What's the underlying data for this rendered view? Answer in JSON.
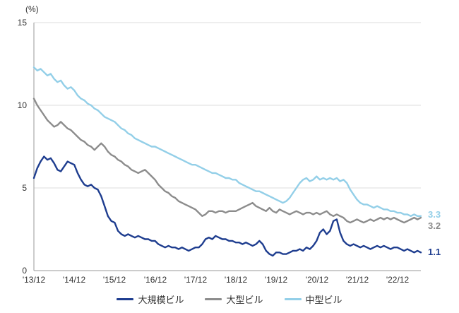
{
  "chart_data": {
    "type": "line",
    "unit_label": "(%)",
    "ylim": [
      0,
      15
    ],
    "yticks": [
      15,
      10,
      5,
      0
    ],
    "ytick_labels": [
      "15",
      "10",
      "5",
      "0"
    ],
    "x_tick_labels": [
      "'13/12",
      "'14/12",
      "'15/12",
      "'16/12",
      "'17/12",
      "'18/12",
      "'19/12",
      "'20/12",
      "'21/12",
      "'22/12"
    ],
    "x_frequency": "monthly",
    "x_start": "2013/12",
    "x_end": "2023/07",
    "grid": "horizontal",
    "legend_position": "bottom",
    "series": [
      {
        "name": "大規模ビル",
        "color": "#1e3d8f",
        "end_label": "1.1",
        "values": [
          5.6,
          6.2,
          6.6,
          6.9,
          6.7,
          6.8,
          6.5,
          6.1,
          6.0,
          6.3,
          6.6,
          6.5,
          6.4,
          5.9,
          5.5,
          5.2,
          5.1,
          5.2,
          5.0,
          4.9,
          4.5,
          3.9,
          3.3,
          3.0,
          2.9,
          2.4,
          2.2,
          2.1,
          2.2,
          2.1,
          2.0,
          2.1,
          2.0,
          1.9,
          1.9,
          1.8,
          1.8,
          1.6,
          1.5,
          1.4,
          1.5,
          1.4,
          1.4,
          1.3,
          1.4,
          1.3,
          1.2,
          1.3,
          1.4,
          1.4,
          1.6,
          1.9,
          2.0,
          1.9,
          2.1,
          2.0,
          1.9,
          1.9,
          1.8,
          1.8,
          1.7,
          1.7,
          1.6,
          1.7,
          1.6,
          1.5,
          1.6,
          1.8,
          1.6,
          1.2,
          1.0,
          0.9,
          1.1,
          1.1,
          1.0,
          1.0,
          1.1,
          1.2,
          1.2,
          1.3,
          1.2,
          1.4,
          1.3,
          1.5,
          1.8,
          2.3,
          2.5,
          2.2,
          2.4,
          3.0,
          3.1,
          2.3,
          1.8,
          1.6,
          1.5,
          1.6,
          1.5,
          1.4,
          1.5,
          1.4,
          1.3,
          1.4,
          1.5,
          1.4,
          1.5,
          1.4,
          1.3,
          1.4,
          1.4,
          1.3,
          1.2,
          1.3,
          1.2,
          1.1,
          1.2,
          1.1
        ]
      },
      {
        "name": "大型ビル",
        "color": "#8c8c8c",
        "end_label": "3.2",
        "values": [
          10.4,
          10.0,
          9.7,
          9.4,
          9.1,
          8.9,
          8.7,
          8.8,
          9.0,
          8.8,
          8.6,
          8.5,
          8.3,
          8.1,
          7.9,
          7.8,
          7.6,
          7.5,
          7.3,
          7.5,
          7.7,
          7.5,
          7.2,
          7.0,
          6.9,
          6.7,
          6.6,
          6.4,
          6.3,
          6.1,
          6.0,
          5.9,
          6.0,
          6.1,
          5.9,
          5.7,
          5.5,
          5.2,
          5.0,
          4.8,
          4.7,
          4.5,
          4.4,
          4.2,
          4.1,
          4.0,
          3.9,
          3.8,
          3.7,
          3.5,
          3.3,
          3.4,
          3.6,
          3.6,
          3.5,
          3.6,
          3.6,
          3.5,
          3.6,
          3.6,
          3.6,
          3.7,
          3.8,
          3.9,
          4.0,
          4.1,
          3.9,
          3.8,
          3.7,
          3.6,
          3.8,
          3.6,
          3.5,
          3.7,
          3.6,
          3.5,
          3.4,
          3.5,
          3.6,
          3.5,
          3.4,
          3.5,
          3.5,
          3.4,
          3.5,
          3.4,
          3.5,
          3.6,
          3.4,
          3.3,
          3.4,
          3.3,
          3.2,
          3.0,
          2.9,
          3.0,
          3.1,
          3.0,
          2.9,
          3.0,
          3.1,
          3.0,
          3.1,
          3.2,
          3.1,
          3.2,
          3.1,
          3.2,
          3.1,
          3.0,
          2.9,
          3.0,
          3.1,
          3.2,
          3.1,
          3.2
        ]
      },
      {
        "name": "中型ビル",
        "color": "#93cfe8",
        "end_label": "3.3",
        "values": [
          12.3,
          12.1,
          12.2,
          12.0,
          11.8,
          11.9,
          11.6,
          11.4,
          11.5,
          11.2,
          11.0,
          11.1,
          10.9,
          10.6,
          10.4,
          10.3,
          10.1,
          10.0,
          9.8,
          9.7,
          9.5,
          9.3,
          9.2,
          9.1,
          9.0,
          8.8,
          8.6,
          8.5,
          8.3,
          8.2,
          8.0,
          7.9,
          7.8,
          7.7,
          7.6,
          7.5,
          7.5,
          7.4,
          7.3,
          7.2,
          7.1,
          7.0,
          6.9,
          6.8,
          6.7,
          6.6,
          6.5,
          6.4,
          6.4,
          6.3,
          6.2,
          6.1,
          6.0,
          5.9,
          5.9,
          5.8,
          5.7,
          5.6,
          5.6,
          5.5,
          5.5,
          5.3,
          5.2,
          5.1,
          5.0,
          4.9,
          4.8,
          4.8,
          4.7,
          4.6,
          4.5,
          4.4,
          4.3,
          4.2,
          4.1,
          4.2,
          4.4,
          4.7,
          5.0,
          5.3,
          5.5,
          5.6,
          5.4,
          5.5,
          5.7,
          5.5,
          5.6,
          5.5,
          5.6,
          5.5,
          5.6,
          5.4,
          5.5,
          5.3,
          4.9,
          4.6,
          4.3,
          4.1,
          4.0,
          4.0,
          3.9,
          3.8,
          3.9,
          3.8,
          3.7,
          3.7,
          3.6,
          3.6,
          3.5,
          3.5,
          3.4,
          3.4,
          3.3,
          3.4,
          3.3,
          3.3
        ]
      }
    ],
    "colors": {
      "grid": "#dcdcdc",
      "axis": "#9a9a9a",
      "text": "#333333"
    }
  }
}
